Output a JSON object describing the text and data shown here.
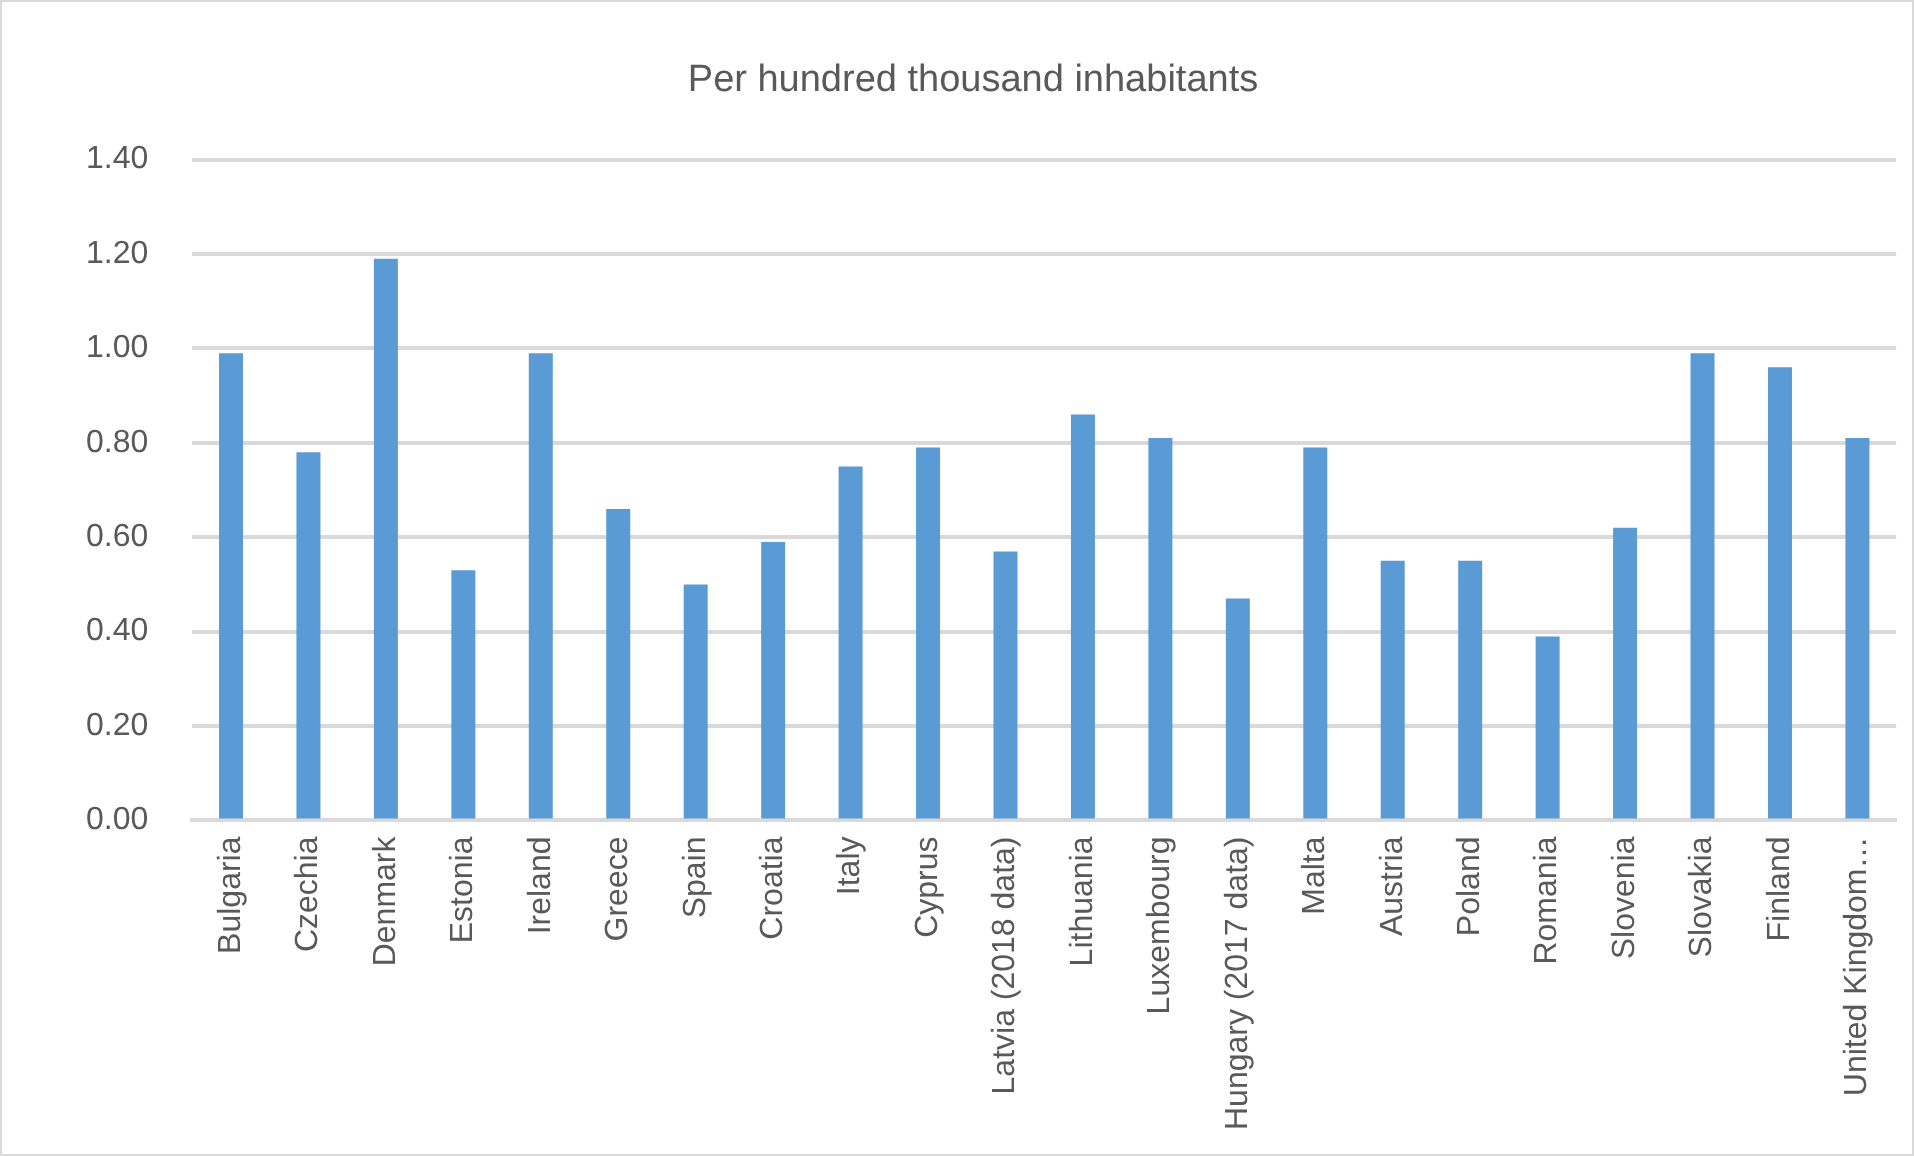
{
  "chart_data": {
    "type": "bar",
    "title": "Per hundred thousand inhabitants",
    "categories": [
      "Bulgaria",
      "Czechia",
      "Denmark",
      "Estonia",
      "Ireland",
      "Greece",
      "Spain",
      "Croatia",
      "Italy",
      "Cyprus",
      "Latvia (2018 data)",
      "Lithuania",
      "Luxembourg",
      "Hungary (2017 data)",
      "Malta",
      "Austria",
      "Poland",
      "Romania",
      "Slovenia",
      "Slovakia",
      "Finland",
      "United Kingdom…"
    ],
    "values": [
      0.99,
      0.78,
      1.19,
      0.53,
      0.99,
      0.66,
      0.5,
      0.59,
      0.75,
      0.79,
      0.57,
      0.86,
      0.81,
      0.47,
      0.79,
      0.55,
      0.55,
      0.39,
      0.62,
      0.99,
      0.96,
      0.81
    ],
    "color": "#5b9bd5",
    "ylim": [
      0,
      1.4
    ],
    "yticks": [
      {
        "value": 0,
        "label": "0.00"
      },
      {
        "value": 0.2,
        "label": "0.20"
      },
      {
        "value": 0.4,
        "label": "0.40"
      },
      {
        "value": 0.6,
        "label": "0.60"
      },
      {
        "value": 0.8,
        "label": "0.80"
      },
      {
        "value": 1,
        "label": "1.00"
      },
      {
        "value": 1.2,
        "label": "1.20"
      },
      {
        "value": 1.4,
        "label": "1.40"
      }
    ],
    "grid": "y"
  }
}
